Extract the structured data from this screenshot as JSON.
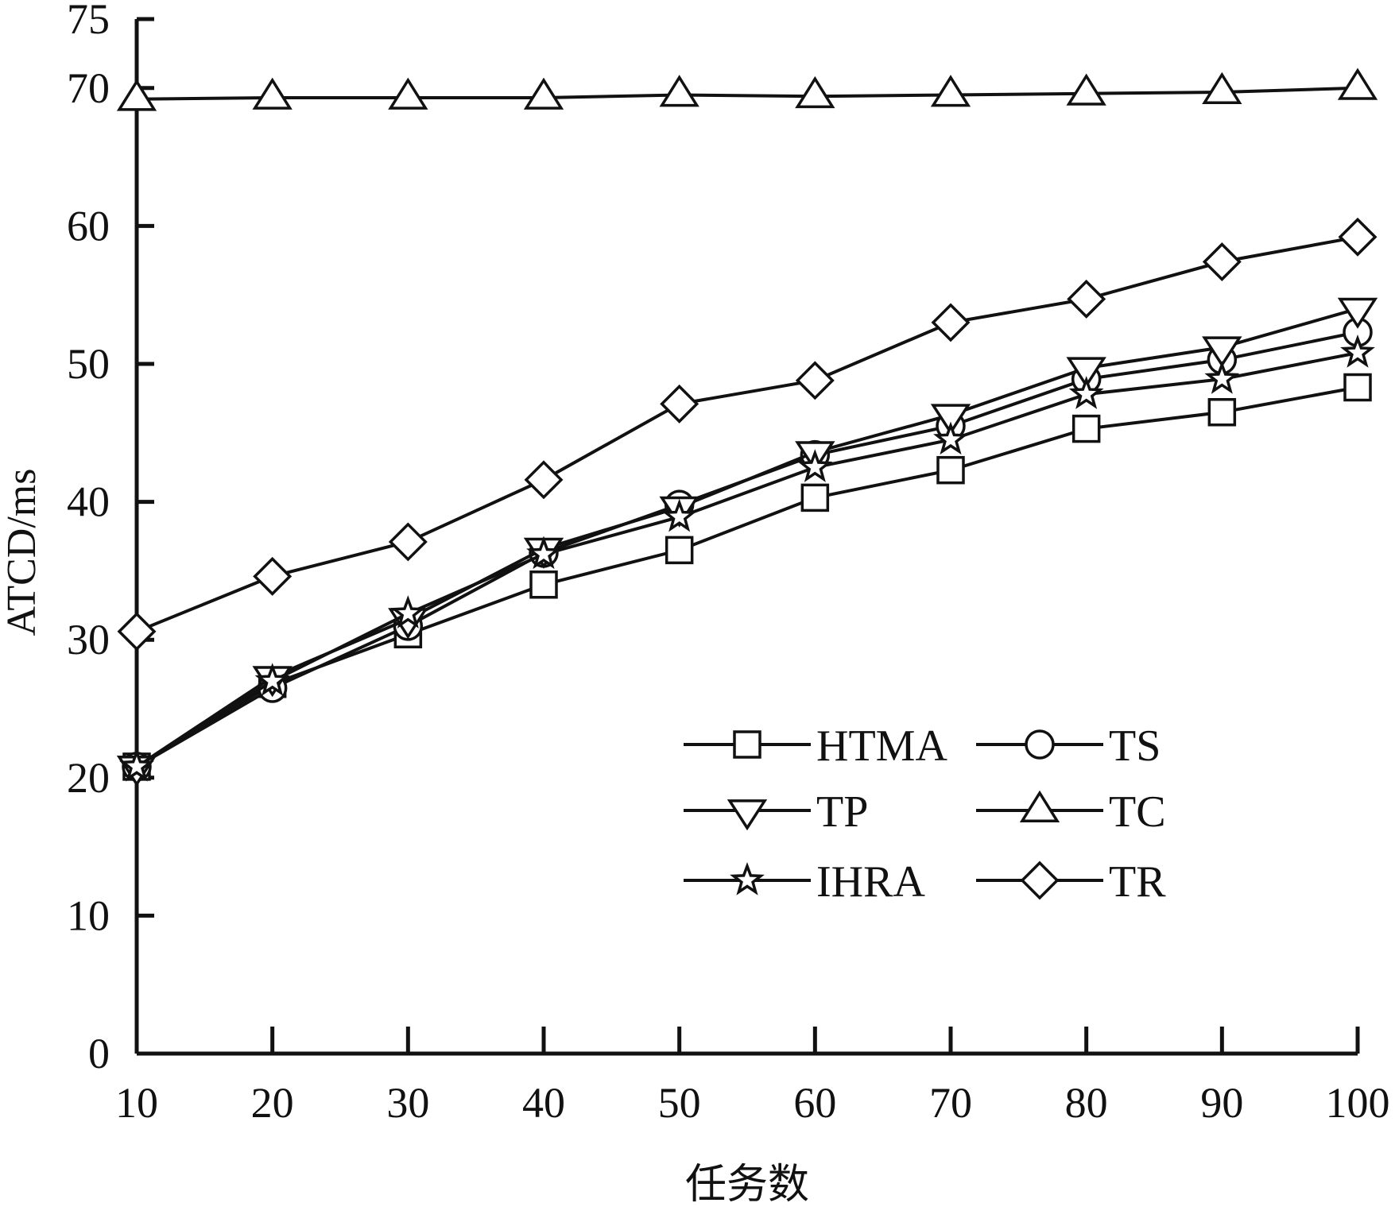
{
  "chart_data": {
    "type": "line",
    "title": "",
    "xlabel": "任务数",
    "ylabel": "ATCD/ms",
    "x": [
      10,
      20,
      30,
      40,
      50,
      60,
      70,
      80,
      90,
      100
    ],
    "xlim": [
      10,
      100
    ],
    "ylim": [
      0,
      75
    ],
    "yticks": [
      0,
      10,
      20,
      30,
      40,
      50,
      60,
      70,
      75
    ],
    "xticks": [
      10,
      20,
      30,
      40,
      50,
      60,
      70,
      80,
      90,
      100
    ],
    "grid": false,
    "legend_position": "lower-right",
    "series": [
      {
        "name": "HTMA",
        "marker": "square",
        "values": [
          20.8,
          26.8,
          30.4,
          34.0,
          36.5,
          40.3,
          42.3,
          45.3,
          46.5,
          48.3
        ]
      },
      {
        "name": "TS",
        "marker": "circle",
        "values": [
          20.8,
          26.5,
          31.0,
          36.3,
          39.8,
          43.4,
          45.5,
          48.9,
          50.3,
          52.3
        ]
      },
      {
        "name": "TP",
        "marker": "triangle-down",
        "values": [
          20.8,
          27.3,
          31.5,
          36.6,
          39.6,
          43.6,
          46.3,
          49.7,
          51.2,
          54.0
        ]
      },
      {
        "name": "TC",
        "marker": "triangle-up",
        "values": [
          69.2,
          69.3,
          69.3,
          69.3,
          69.5,
          69.4,
          69.5,
          69.6,
          69.7,
          70.0
        ]
      },
      {
        "name": "IHRA",
        "marker": "star",
        "values": [
          20.8,
          27.0,
          31.9,
          36.2,
          38.9,
          42.5,
          44.5,
          47.8,
          48.9,
          50.8
        ]
      },
      {
        "name": "TR",
        "marker": "diamond",
        "values": [
          30.6,
          34.6,
          37.1,
          41.6,
          47.1,
          48.8,
          53.0,
          54.7,
          57.4,
          59.2
        ]
      }
    ]
  }
}
